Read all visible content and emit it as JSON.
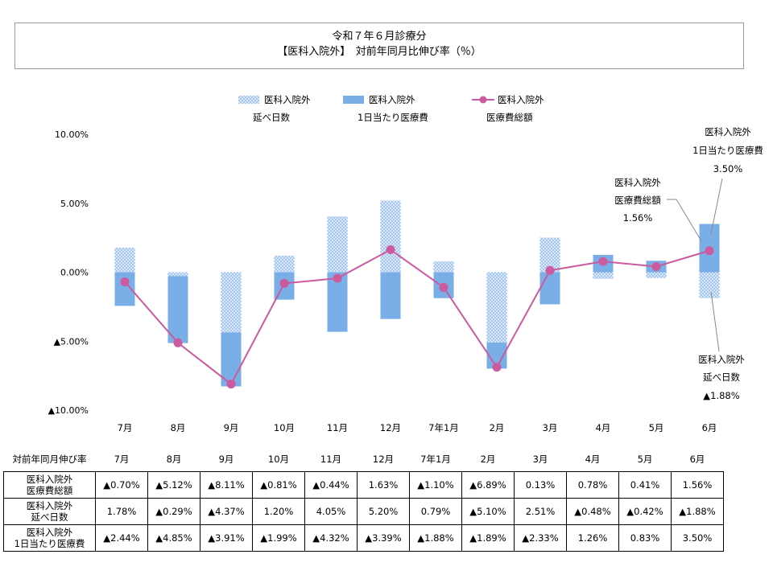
{
  "title": {
    "line1": "令和７年６月診療分",
    "line2": "【医科入院外】　対前年同月比伸び率（％）"
  },
  "legend": [
    {
      "key": "days",
      "line1": "医科入院外",
      "line2": "延べ日数"
    },
    {
      "key": "perday",
      "line1": "医科入院外",
      "line2": "1日当たり医療費"
    },
    {
      "key": "total",
      "line1": "医科入院外",
      "line2": "医療費総額"
    }
  ],
  "colors": {
    "bar": "#7aaee6",
    "bar_pattern": "#8fb8e8",
    "line": "#cc5a9e",
    "axis_text": "#000000"
  },
  "chart_data": {
    "type": "bar",
    "stacked": true,
    "categories": [
      "7月",
      "8月",
      "9月",
      "10月",
      "11月",
      "12月",
      "7年1月",
      "2月",
      "3月",
      "4月",
      "5月",
      "6月"
    ],
    "series": [
      {
        "name": "医科入院外 延べ日数",
        "kind": "bar",
        "pattern": "dotted",
        "values": [
          1.78,
          -0.29,
          -4.37,
          1.2,
          4.05,
          5.2,
          0.79,
          -5.1,
          2.51,
          -0.48,
          -0.42,
          -1.88
        ]
      },
      {
        "name": "医科入院外 1日当たり医療費",
        "kind": "bar",
        "pattern": "solid",
        "values": [
          -2.44,
          -4.85,
          -3.91,
          -1.99,
          -4.32,
          -3.39,
          -1.88,
          -1.89,
          -2.33,
          1.26,
          0.83,
          3.5
        ]
      },
      {
        "name": "医科入院外 医療費総額",
        "kind": "line",
        "values": [
          -0.7,
          -5.12,
          -8.11,
          -0.81,
          -0.44,
          1.63,
          -1.1,
          -6.89,
          0.13,
          0.78,
          0.41,
          1.56
        ]
      }
    ],
    "ylim": [
      -10,
      10
    ],
    "yticks": [
      {
        "value": 10,
        "label": "10.00%"
      },
      {
        "value": 5,
        "label": "5.00%"
      },
      {
        "value": 0,
        "label": "0.00%"
      },
      {
        "value": -5,
        "label": "▲5.00%"
      },
      {
        "value": -10,
        "label": "▲10.00%"
      }
    ],
    "grid": false,
    "legend_position": "top",
    "annotations": [
      {
        "target": "perday-6",
        "lines": [
          "医科入院外",
          "1日当たり医療費",
          "3.50%"
        ]
      },
      {
        "target": "total-6",
        "lines": [
          "医科入院外",
          "医療費総額",
          "1.56%"
        ]
      },
      {
        "target": "days-6",
        "lines": [
          "医科入院外",
          "延べ日数",
          "▲1.88%"
        ]
      }
    ]
  },
  "table": {
    "header_label": "対前年同月伸び率",
    "months": [
      "7月",
      "8月",
      "9月",
      "10月",
      "11月",
      "12月",
      "7年1月",
      "2月",
      "3月",
      "4月",
      "5月",
      "6月"
    ],
    "rows": [
      {
        "label_line1": "医科入院外",
        "label_line2": "医療費総額",
        "cells": [
          "▲0.70%",
          "▲5.12%",
          "▲8.11%",
          "▲0.81%",
          "▲0.44%",
          "1.63%",
          "▲1.10%",
          "▲6.89%",
          "0.13%",
          "0.78%",
          "0.41%",
          "1.56%"
        ]
      },
      {
        "label_line1": "医科入院外",
        "label_line2": "延べ日数",
        "cells": [
          "1.78%",
          "▲0.29%",
          "▲4.37%",
          "1.20%",
          "4.05%",
          "5.20%",
          "0.79%",
          "▲5.10%",
          "2.51%",
          "▲0.48%",
          "▲0.42%",
          "▲1.88%"
        ]
      },
      {
        "label_line1": "医科入院外",
        "label_line2": "1日当たり医療費",
        "cells": [
          "▲2.44%",
          "▲4.85%",
          "▲3.91%",
          "▲1.99%",
          "▲4.32%",
          "▲3.39%",
          "▲1.88%",
          "▲1.89%",
          "▲2.33%",
          "1.26%",
          "0.83%",
          "3.50%"
        ]
      }
    ]
  }
}
